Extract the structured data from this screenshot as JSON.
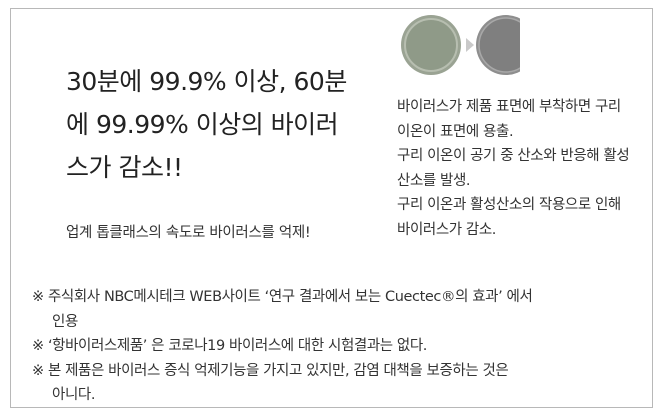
{
  "headline": {
    "lines": [
      "30분에 99.9% 이상, 60분",
      "에 99.99% 이상의 바이러",
      "스가 감소!!"
    ]
  },
  "subtext": "업계 톱클래스의 속도로 바이러스를 억제!",
  "description": {
    "lines": [
      "바이러스가 제품 표면에 부착하면 구리",
      "이온이 표면에 용출.",
      "구리 이온이 공기 중 산소와 반응해 활성",
      "산소를 발생.",
      "구리 이온과 활성산소의 작용으로 인해",
      "바이러스가 감소."
    ]
  },
  "notes": [
    {
      "marker": "※",
      "lines": [
        "주식회사 NBC메시테크 WEB사이트 ‘연구 결과에서 보는 Cuectec®의 효과’ 에서",
        "인용"
      ]
    },
    {
      "marker": "※",
      "lines": [
        "‘항바이러스제품’ 은 코로나19 바이러스에 대한 시험결과는 없다."
      ]
    },
    {
      "marker": "※",
      "lines": [
        "본 제품은 바이러스 증식 억제기능을 가지고 있지만, 감염 대책을 보증하는 것은",
        "아니다."
      ]
    }
  ]
}
